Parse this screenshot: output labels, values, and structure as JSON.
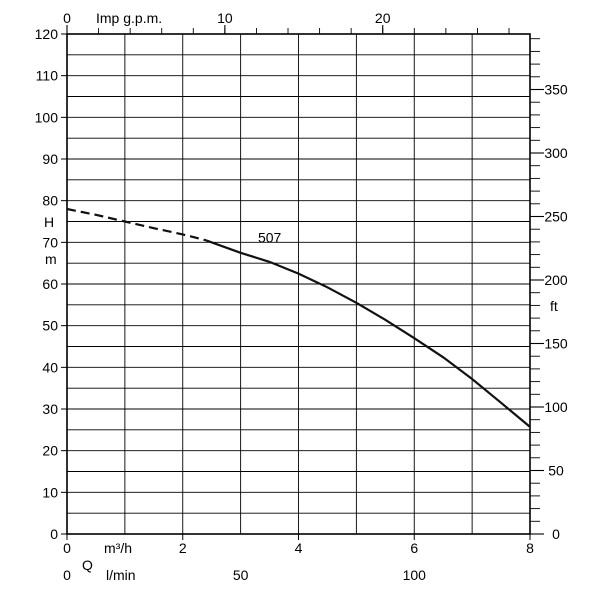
{
  "chart_data": {
    "type": "line",
    "labels": {
      "top_unit": "Imp g.p.m.",
      "left_unit_h": "H",
      "left_unit_m": "m",
      "right_unit": "ft",
      "q_symbol": "Q",
      "m3h_unit": "m³/h",
      "lmin_unit": "l/min"
    },
    "axes": {
      "x_m3h": {
        "range": [
          0,
          8
        ],
        "ticks": [
          0,
          2,
          4,
          6,
          8
        ],
        "grid_step": 1
      },
      "x_imp_gpm": {
        "ticks": [
          0,
          10,
          20
        ],
        "minor_step": 2
      },
      "x_lmin": {
        "ticks": [
          0,
          50,
          100
        ]
      },
      "y_m": {
        "range": [
          0,
          120
        ],
        "ticks": [
          0,
          10,
          20,
          30,
          40,
          50,
          60,
          70,
          80,
          90,
          100,
          110,
          120
        ],
        "grid_step": 5
      },
      "y_ft": {
        "ticks": [
          0,
          50,
          100,
          150,
          200,
          250,
          300,
          350
        ],
        "minor_step": 10
      }
    },
    "grid": true,
    "series": [
      {
        "name": "507",
        "dashed_until_x": 2.4,
        "points": [
          [
            0,
            78
          ],
          [
            0.5,
            76.6
          ],
          [
            1.0,
            75
          ],
          [
            1.5,
            73.4
          ],
          [
            2.0,
            71.9
          ],
          [
            2.4,
            70.5
          ],
          [
            3.0,
            67.5
          ],
          [
            3.5,
            65.3
          ],
          [
            4.0,
            62.5
          ],
          [
            4.5,
            59.2
          ],
          [
            5.0,
            55.5
          ],
          [
            5.5,
            51.4
          ],
          [
            6.0,
            47
          ],
          [
            6.5,
            42.4
          ],
          [
            7.0,
            37.2
          ],
          [
            7.5,
            31.5
          ],
          [
            8.0,
            25.7
          ]
        ]
      }
    ]
  }
}
